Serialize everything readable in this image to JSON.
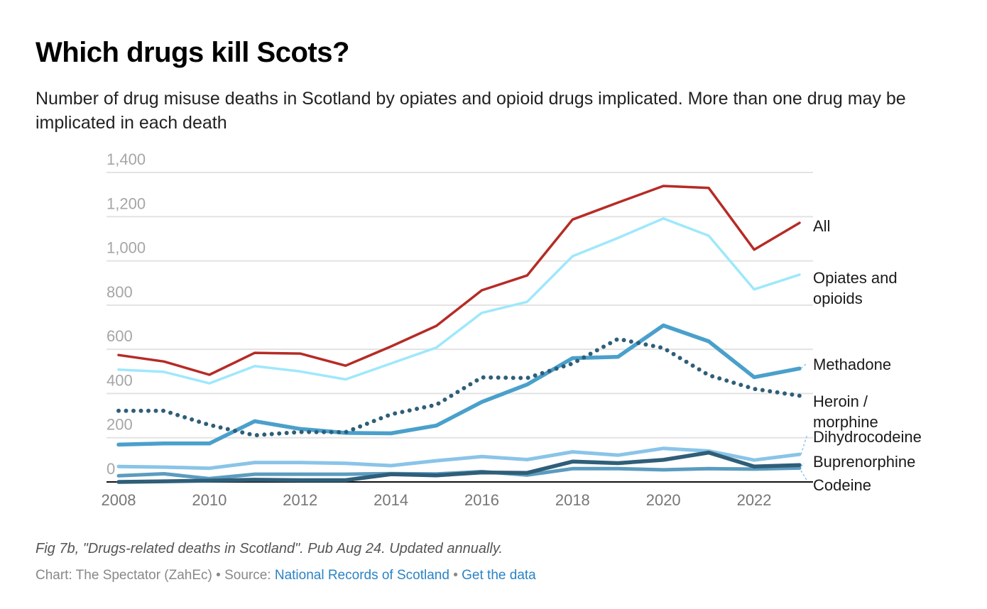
{
  "header": {
    "title": "Which drugs kill Scots?",
    "subtitle": "Number of drug misuse deaths in Scotland by opiates and opioid drugs implicated. More than one drug may be implicated in each death"
  },
  "chart_data": {
    "type": "line",
    "title": "Which drugs kill Scots?",
    "subtitle": "Number of drug misuse deaths in Scotland by opiates and opioid drugs implicated. More than one drug may be implicated in each death",
    "xlabel": "",
    "ylabel": "",
    "x": [
      2008,
      2009,
      2010,
      2011,
      2012,
      2013,
      2014,
      2015,
      2016,
      2017,
      2018,
      2019,
      2020,
      2021,
      2022,
      2023
    ],
    "x_ticks": [
      "2008",
      "2010",
      "2012",
      "2014",
      "2016",
      "2018",
      "2020",
      "2022"
    ],
    "x_tick_values": [
      2008,
      2010,
      2012,
      2014,
      2016,
      2018,
      2020,
      2022
    ],
    "y_ticks": [
      "0",
      "200",
      "400",
      "600",
      "800",
      "1,000",
      "1,200",
      "1,400"
    ],
    "y_tick_values": [
      0,
      200,
      400,
      600,
      800,
      1000,
      1200,
      1400
    ],
    "ylim": [
      0,
      1400
    ],
    "grid": true,
    "legend": "direct-labels-right",
    "series": [
      {
        "name": "All",
        "label": "All",
        "color": "#b62b26",
        "style": "solid",
        "values": [
          574,
          545,
          485,
          584,
          581,
          526,
          613,
          706,
          867,
          934,
          1187,
          1264,
          1339,
          1330,
          1051,
          1172
        ]
      },
      {
        "name": "Opiates and opioids",
        "label": "Opiates and opioids",
        "color": "#9ee8fb",
        "style": "solid",
        "values": [
          508,
          498,
          446,
          524,
          500,
          464,
          536,
          608,
          765,
          815,
          1021,
          1104,
          1192,
          1114,
          871,
          938
        ]
      },
      {
        "name": "Methadone",
        "label": "Methadone",
        "color": "#4aa0cb",
        "style": "solid",
        "values": [
          169,
          174,
          174,
          275,
          240,
          222,
          220,
          255,
          362,
          441,
          560,
          566,
          708,
          636,
          474,
          513
        ]
      },
      {
        "name": "Heroin / morphine",
        "label": "Heroin / morphine",
        "color": "#2f5e78",
        "style": "dotted",
        "values": [
          322,
          322,
          258,
          211,
          226,
          225,
          306,
          349,
          473,
          470,
          536,
          647,
          606,
          483,
          421,
          390
        ]
      },
      {
        "name": "Dihydrocodeine",
        "label": "Dihydrocodeine",
        "color": "#8ac4e8",
        "style": "solid",
        "values": [
          70,
          67,
          62,
          88,
          88,
          84,
          74,
          96,
          115,
          101,
          136,
          121,
          152,
          140,
          99,
          125
        ]
      },
      {
        "name": "Buprenorphine",
        "label": "Buprenorphine",
        "color": "#2f5e78",
        "style": "solid",
        "values": [
          0,
          3,
          6,
          10,
          8,
          8,
          35,
          30,
          43,
          41,
          92,
          85,
          100,
          133,
          70,
          76
        ]
      },
      {
        "name": "Codeine",
        "label": "Codeine",
        "color": "#5b9cbf",
        "style": "solid",
        "values": [
          28,
          37,
          15,
          35,
          35,
          35,
          38,
          36,
          47,
          31,
          60,
          60,
          55,
          60,
          58,
          63
        ]
      }
    ],
    "label_order": [
      "All",
      "Opiates and opioids",
      "Methadone",
      "Heroin / morphine",
      "Dihydrocodeine",
      "Buprenorphine",
      "Codeine"
    ]
  },
  "footer": {
    "note": "Fig 7b, \"Drugs-related deaths in Scotland\". Pub Aug 24. Updated annually.",
    "credit_prefix": "Chart: The Spectator (ZahEc) • Source: ",
    "source_link": "National Records of Scotland",
    "separator": " • ",
    "data_link": "Get the data"
  }
}
